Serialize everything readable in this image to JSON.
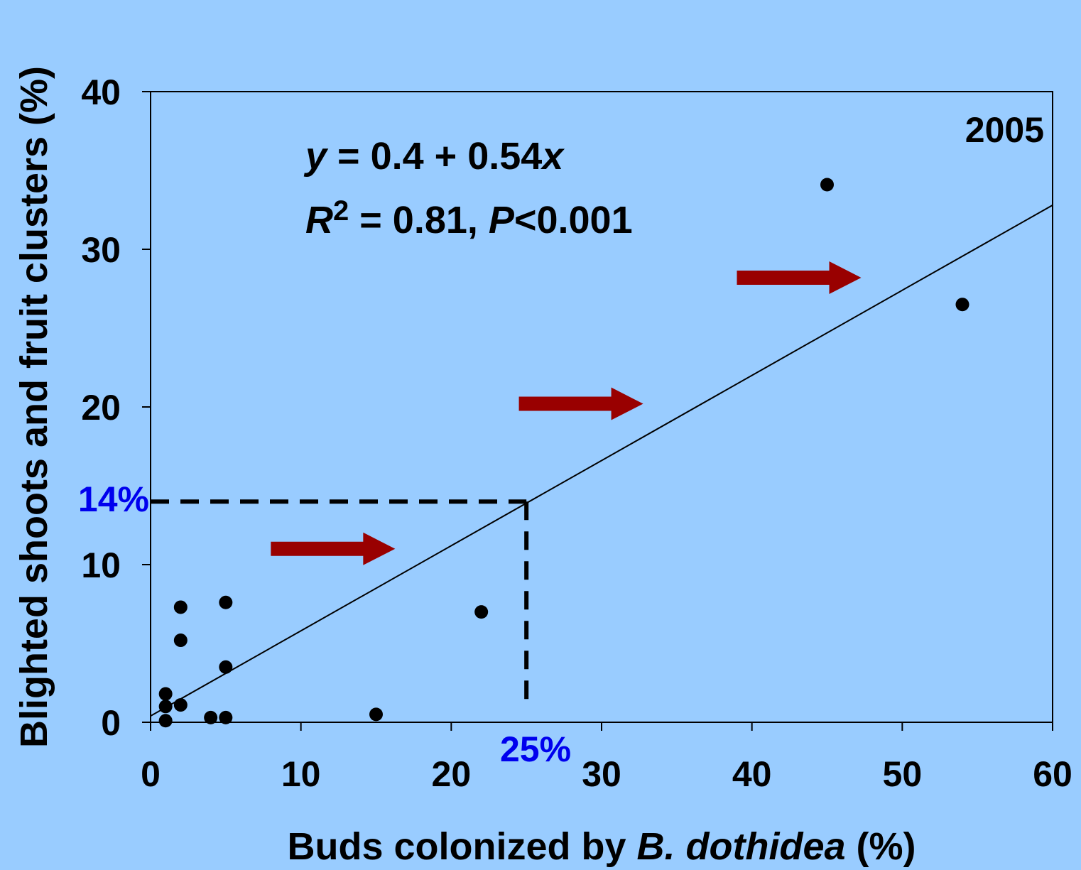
{
  "chart_data": {
    "type": "scatter",
    "year_label": "2005",
    "xlabel_pre": "Buds colonized by ",
    "xlabel_italic": "B. dothidea",
    "xlabel_post": " (%)",
    "ylabel": "Blighted shoots and fruit clusters (%)",
    "xlim": [
      0,
      60
    ],
    "ylim": [
      0,
      40
    ],
    "xticks": [
      "0",
      "10",
      "20",
      "30",
      "40",
      "50",
      "60"
    ],
    "yticks": [
      "0",
      "10",
      "20",
      "30",
      "40"
    ],
    "grid": false,
    "points": [
      {
        "x": 1,
        "y": 0.1
      },
      {
        "x": 1,
        "y": 1.0
      },
      {
        "x": 1,
        "y": 1.8
      },
      {
        "x": 2,
        "y": 1.1
      },
      {
        "x": 2,
        "y": 5.2
      },
      {
        "x": 2,
        "y": 7.3
      },
      {
        "x": 4,
        "y": 0.3
      },
      {
        "x": 5,
        "y": 0.3
      },
      {
        "x": 5,
        "y": 3.5
      },
      {
        "x": 5,
        "y": 7.6
      },
      {
        "x": 15,
        "y": 0.5
      },
      {
        "x": 22,
        "y": 7.0
      },
      {
        "x": 45,
        "y": 34.1
      },
      {
        "x": 54,
        "y": 26.5
      }
    ],
    "regression": {
      "intercept": 0.4,
      "slope": 0.54
    },
    "equation": {
      "line1_y": "y",
      "line1_mid": " = 0.4 + 0.54",
      "line1_x": "x",
      "line2_r": "R",
      "line2_sup": "2",
      "line2_mid": " = 0.81, ",
      "line2_p": "P",
      "line2_end": "<0.001"
    },
    "annotations": {
      "x_marker": 25,
      "y_marker": 14,
      "x_marker_label": "25%",
      "y_marker_label": "14%",
      "arrows": [
        {
          "x": 8,
          "y": 11
        },
        {
          "x": 24.5,
          "y": 20.2
        },
        {
          "x": 39,
          "y": 28.2
        }
      ]
    },
    "colors": {
      "background": "#99ccff",
      "points": "#000000",
      "arrows": "#990000",
      "marker_labels": "#0000ee"
    }
  }
}
